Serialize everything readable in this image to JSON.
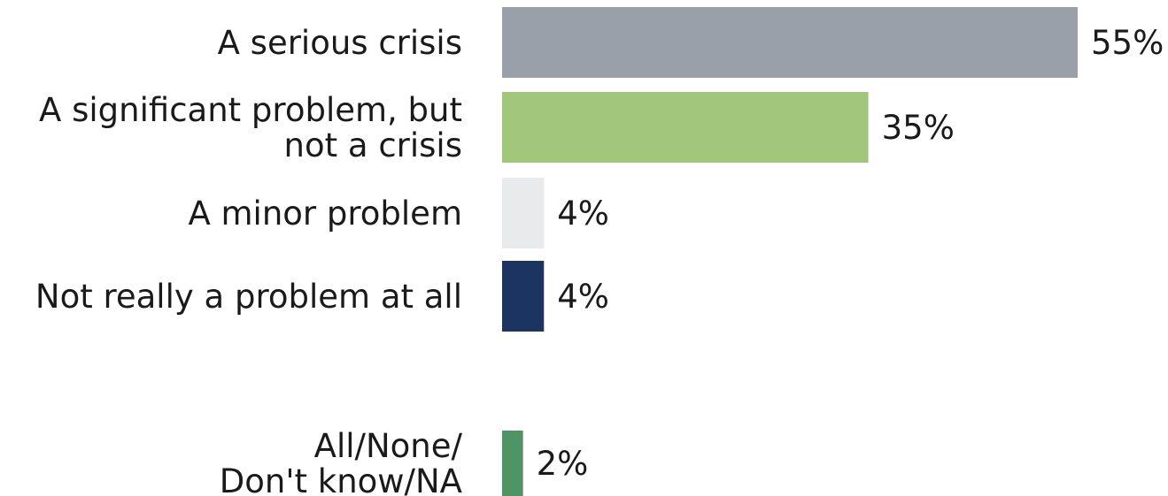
{
  "chart_data": {
    "type": "bar",
    "orientation": "horizontal",
    "categories": [
      [
        "A serious crisis"
      ],
      [
        "A significant problem, but",
        "not a crisis"
      ],
      [
        "A minor problem"
      ],
      [
        "Not really a problem at all"
      ],
      [
        "All/None/",
        "Don't know/NA"
      ]
    ],
    "values": [
      55,
      35,
      4,
      4,
      2
    ],
    "value_labels": [
      "55%",
      "35%",
      "4%",
      "4%",
      "2%"
    ],
    "colors": [
      "#99a0a9",
      "#a3c77a",
      "#e9eaeb",
      "#1c3461",
      "#4f9465"
    ],
    "unit": "%",
    "title": "",
    "xlabel": "",
    "ylabel": "",
    "xlim": [
      0,
      55
    ],
    "grid": false,
    "legend": "none"
  }
}
